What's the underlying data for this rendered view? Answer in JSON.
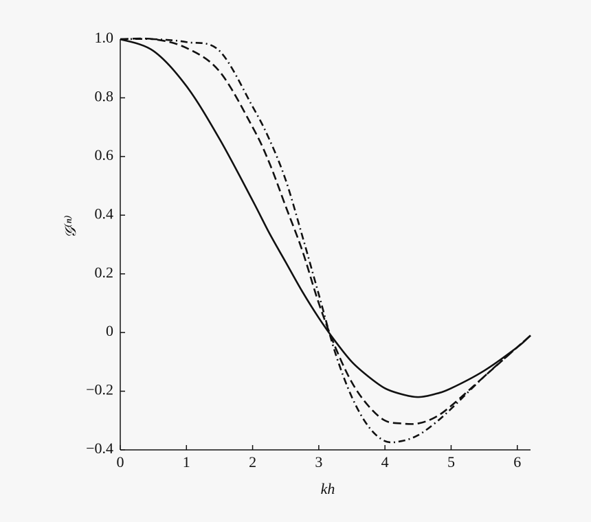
{
  "chart_data": {
    "type": "line",
    "xlabel": "kh",
    "ylabel": "𝒢⁽ⁿ⁾",
    "x": [
      0,
      0.5,
      1,
      1.5,
      2,
      2.25,
      2.5,
      2.75,
      3,
      3.25,
      3.5,
      3.75,
      4,
      4.25,
      4.5,
      4.75,
      5,
      5.5,
      6,
      6.2
    ],
    "series": [
      {
        "color": "#111111",
        "dash": "solid",
        "values": [
          1,
          0.96,
          0.84,
          0.66,
          0.45,
          0.34,
          0.24,
          0.14,
          0.05,
          -0.03,
          -0.1,
          -0.15,
          -0.19,
          -0.21,
          -0.22,
          -0.21,
          -0.19,
          -0.13,
          -0.05,
          -0.01
        ]
      },
      {
        "color": "#111111",
        "dash": "dashed",
        "values": [
          1,
          1.0,
          0.97,
          0.89,
          0.7,
          0.58,
          0.43,
          0.28,
          0.1,
          -0.05,
          -0.17,
          -0.25,
          -0.3,
          -0.31,
          -0.31,
          -0.29,
          -0.25,
          -0.15,
          -0.05,
          -0.01
        ]
      },
      {
        "color": "#111111",
        "dash": "dashdot",
        "values": [
          1,
          1.0,
          0.99,
          0.96,
          0.77,
          0.66,
          0.52,
          0.33,
          0.13,
          -0.07,
          -0.22,
          -0.32,
          -0.37,
          -0.37,
          -0.35,
          -0.31,
          -0.26,
          -0.15,
          -0.05,
          -0.01
        ]
      }
    ],
    "xlim": [
      0,
      6.2
    ],
    "xticks": [
      0,
      1,
      2,
      3,
      4,
      5,
      6
    ],
    "ylim": [
      -0.4,
      1.0
    ],
    "yticks": [
      {
        "value": -0.4,
        "label": "−0.4"
      },
      {
        "value": -0.2,
        "label": "−0.2"
      },
      0,
      0.2,
      0.4,
      0.6,
      0.8,
      {
        "value": 1.0,
        "label": "1.0"
      }
    ],
    "grid": false
  }
}
